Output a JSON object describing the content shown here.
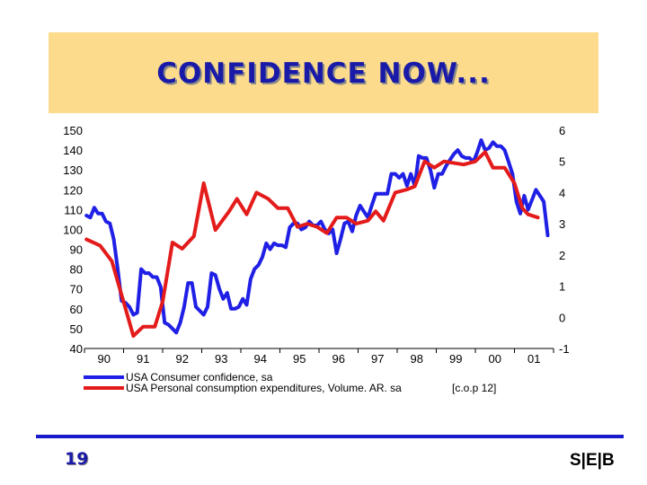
{
  "slide": {
    "title": "CONFIDENCE NOW...",
    "page_number": "19",
    "logo_text": "S|E|B"
  },
  "colors": {
    "title_band": "#fcdc8c",
    "title_text": "#1a1aa8",
    "series_blue": "#1f1fe6",
    "series_red": "#e41b1b",
    "footer_line": "#1a1acc"
  },
  "chart_data": {
    "type": "line",
    "title": "",
    "x_range": [
      1989.5,
      2001.5
    ],
    "x_ticks": [
      {
        "value": 1990,
        "label": "90"
      },
      {
        "value": 1991,
        "label": "91"
      },
      {
        "value": 1992,
        "label": "92"
      },
      {
        "value": 1993,
        "label": "93"
      },
      {
        "value": 1994,
        "label": "94"
      },
      {
        "value": 1995,
        "label": "95"
      },
      {
        "value": 1996,
        "label": "96"
      },
      {
        "value": 1997,
        "label": "97"
      },
      {
        "value": 1998,
        "label": "98"
      },
      {
        "value": 1999,
        "label": "99"
      },
      {
        "value": 2000,
        "label": "00"
      },
      {
        "value": 2001,
        "label": "01"
      }
    ],
    "y_left": {
      "min": 40,
      "max": 150,
      "ticks": [
        "40",
        "50",
        "60",
        "70",
        "80",
        "90",
        "100",
        "110",
        "120",
        "130",
        "140",
        "150"
      ]
    },
    "y_right": {
      "min": -1,
      "max": 6,
      "ticks": [
        "-1",
        "0",
        "1",
        "2",
        "3",
        "4",
        "5",
        "6"
      ]
    },
    "grid": false,
    "legend_position": "bottom",
    "series": [
      {
        "name": "USA Consumer confidence, sa",
        "axis": "left",
        "points": [
          [
            1989.55,
            107
          ],
          [
            1989.65,
            106
          ],
          [
            1989.75,
            111
          ],
          [
            1989.85,
            108
          ],
          [
            1989.95,
            108
          ],
          [
            1990.05,
            104
          ],
          [
            1990.15,
            103
          ],
          [
            1990.25,
            95
          ],
          [
            1990.35,
            80
          ],
          [
            1990.45,
            64
          ],
          [
            1990.55,
            63
          ],
          [
            1990.65,
            61
          ],
          [
            1990.75,
            57
          ],
          [
            1990.85,
            58
          ],
          [
            1990.95,
            80
          ],
          [
            1991.05,
            78
          ],
          [
            1991.15,
            78
          ],
          [
            1991.25,
            76
          ],
          [
            1991.35,
            76
          ],
          [
            1991.45,
            71
          ],
          [
            1991.55,
            53
          ],
          [
            1991.65,
            52
          ],
          [
            1991.75,
            50
          ],
          [
            1991.85,
            48
          ],
          [
            1991.95,
            53
          ],
          [
            1992.05,
            61
          ],
          [
            1992.15,
            73
          ],
          [
            1992.25,
            73
          ],
          [
            1992.35,
            61
          ],
          [
            1992.45,
            59
          ],
          [
            1992.55,
            57
          ],
          [
            1992.65,
            61
          ],
          [
            1992.75,
            78
          ],
          [
            1992.85,
            77
          ],
          [
            1992.95,
            70
          ],
          [
            1993.05,
            65
          ],
          [
            1993.15,
            68
          ],
          [
            1993.25,
            60
          ],
          [
            1993.35,
            60
          ],
          [
            1993.45,
            61
          ],
          [
            1993.55,
            65
          ],
          [
            1993.65,
            62
          ],
          [
            1993.75,
            75
          ],
          [
            1993.85,
            80
          ],
          [
            1993.95,
            82
          ],
          [
            1994.05,
            86
          ],
          [
            1994.15,
            93
          ],
          [
            1994.25,
            90
          ],
          [
            1994.35,
            93
          ],
          [
            1994.45,
            92
          ],
          [
            1994.55,
            92
          ],
          [
            1994.65,
            91
          ],
          [
            1994.75,
            101
          ],
          [
            1994.85,
            103
          ],
          [
            1994.95,
            103
          ],
          [
            1995.05,
            100
          ],
          [
            1995.15,
            101
          ],
          [
            1995.25,
            104
          ],
          [
            1995.35,
            102
          ],
          [
            1995.45,
            102
          ],
          [
            1995.55,
            104
          ],
          [
            1995.65,
            100
          ],
          [
            1995.75,
            98
          ],
          [
            1995.85,
            100
          ],
          [
            1995.95,
            88
          ],
          [
            1996.05,
            95
          ],
          [
            1996.15,
            103
          ],
          [
            1996.25,
            104
          ],
          [
            1996.35,
            99
          ],
          [
            1996.45,
            107
          ],
          [
            1996.55,
            112
          ],
          [
            1996.65,
            109
          ],
          [
            1996.75,
            106
          ],
          [
            1996.85,
            112
          ],
          [
            1996.95,
            118
          ],
          [
            1997.05,
            118
          ],
          [
            1997.15,
            118
          ],
          [
            1997.25,
            118
          ],
          [
            1997.35,
            128
          ],
          [
            1997.45,
            128
          ],
          [
            1997.55,
            126
          ],
          [
            1997.65,
            128
          ],
          [
            1997.75,
            122
          ],
          [
            1997.85,
            128
          ],
          [
            1997.95,
            122
          ],
          [
            1998.05,
            137
          ],
          [
            1998.15,
            136
          ],
          [
            1998.25,
            136
          ],
          [
            1998.35,
            130
          ],
          [
            1998.45,
            121
          ],
          [
            1998.55,
            128
          ],
          [
            1998.65,
            128
          ],
          [
            1998.75,
            132
          ],
          [
            1998.85,
            135
          ],
          [
            1998.95,
            138
          ],
          [
            1999.05,
            140
          ],
          [
            1999.15,
            137
          ],
          [
            1999.25,
            136
          ],
          [
            1999.35,
            136
          ],
          [
            1999.45,
            134
          ],
          [
            1999.55,
            139
          ],
          [
            1999.65,
            145
          ],
          [
            1999.75,
            140
          ],
          [
            1999.85,
            141
          ],
          [
            1999.95,
            144
          ],
          [
            2000.05,
            142
          ],
          [
            2000.15,
            142
          ],
          [
            2000.25,
            140
          ],
          [
            2000.35,
            134
          ],
          [
            2000.45,
            128
          ],
          [
            2000.55,
            114
          ],
          [
            2000.65,
            108
          ],
          [
            2000.75,
            117
          ],
          [
            2000.85,
            110
          ],
          [
            2000.95,
            115
          ],
          [
            2001.05,
            120
          ],
          [
            2001.15,
            117
          ],
          [
            2001.25,
            114
          ],
          [
            2001.35,
            97
          ]
        ]
      },
      {
        "name": "USA Personal consumption expenditures, Volume. AR. sa",
        "axis": "right",
        "points": [
          [
            1989.55,
            2.5
          ],
          [
            1989.9,
            2.3
          ],
          [
            1990.2,
            1.8
          ],
          [
            1990.5,
            0.5
          ],
          [
            1990.75,
            -0.6
          ],
          [
            1991.0,
            -0.3
          ],
          [
            1991.3,
            -0.3
          ],
          [
            1991.5,
            0.5
          ],
          [
            1991.75,
            2.4
          ],
          [
            1992.0,
            2.2
          ],
          [
            1992.3,
            2.6
          ],
          [
            1992.55,
            4.3
          ],
          [
            1992.85,
            2.8
          ],
          [
            1993.2,
            3.4
          ],
          [
            1993.4,
            3.8
          ],
          [
            1993.65,
            3.3
          ],
          [
            1993.9,
            4.0
          ],
          [
            1994.2,
            3.8
          ],
          [
            1994.45,
            3.5
          ],
          [
            1994.7,
            3.5
          ],
          [
            1994.95,
            2.9
          ],
          [
            1995.2,
            3.0
          ],
          [
            1995.45,
            2.9
          ],
          [
            1995.7,
            2.7
          ],
          [
            1995.95,
            3.2
          ],
          [
            1996.2,
            3.2
          ],
          [
            1996.45,
            3.0
          ],
          [
            1996.75,
            3.1
          ],
          [
            1996.95,
            3.4
          ],
          [
            1997.15,
            3.1
          ],
          [
            1997.45,
            4.0
          ],
          [
            1997.75,
            4.1
          ],
          [
            1997.95,
            4.2
          ],
          [
            1998.2,
            5.0
          ],
          [
            1998.45,
            4.8
          ],
          [
            1998.7,
            5.0
          ],
          [
            1998.95,
            4.95
          ],
          [
            1999.2,
            4.9
          ],
          [
            1999.5,
            5.0
          ],
          [
            1999.75,
            5.3
          ],
          [
            1999.95,
            4.8
          ],
          [
            2000.25,
            4.8
          ],
          [
            2000.5,
            4.3
          ],
          [
            2000.7,
            3.5
          ],
          [
            2000.85,
            3.3
          ],
          [
            2001.1,
            3.2
          ]
        ]
      }
    ],
    "annotation": "[c.o.p 12]"
  }
}
